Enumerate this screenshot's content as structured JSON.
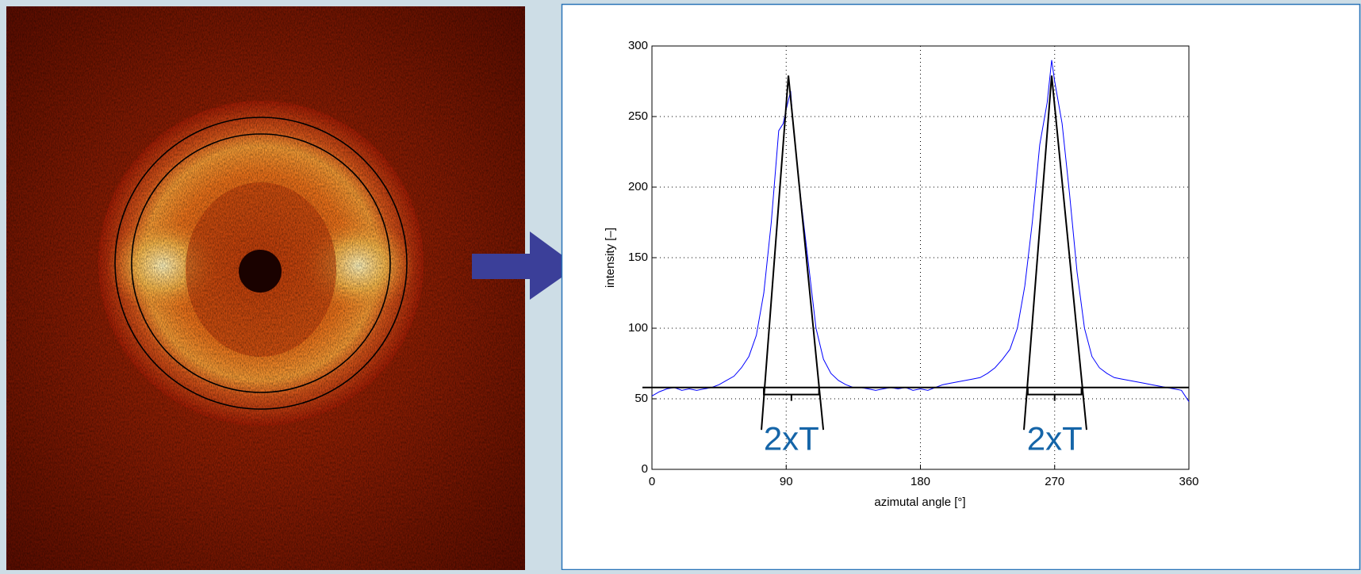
{
  "chart_data": {
    "type": "line",
    "xlabel": "azimutal angle [°]",
    "ylabel": "intensity [–]",
    "x": [
      0,
      5,
      10,
      15,
      20,
      25,
      30,
      35,
      40,
      45,
      50,
      55,
      60,
      65,
      70,
      75,
      80,
      85,
      88,
      90,
      93,
      95,
      100,
      105,
      110,
      115,
      120,
      125,
      130,
      135,
      140,
      145,
      150,
      155,
      160,
      165,
      170,
      175,
      180,
      185,
      190,
      195,
      200,
      205,
      210,
      215,
      220,
      225,
      230,
      235,
      240,
      245,
      250,
      255,
      260,
      265,
      268,
      270,
      275,
      280,
      285,
      290,
      295,
      300,
      305,
      310,
      315,
      320,
      325,
      330,
      335,
      340,
      345,
      350,
      355,
      360
    ],
    "values": [
      52,
      55,
      57,
      58,
      56,
      57,
      56,
      57,
      58,
      60,
      63,
      66,
      72,
      80,
      95,
      125,
      175,
      240,
      245,
      255,
      268,
      240,
      190,
      145,
      100,
      78,
      68,
      63,
      60,
      58,
      58,
      57,
      56,
      57,
      58,
      57,
      58,
      56,
      57,
      56,
      58,
      60,
      61,
      62,
      63,
      64,
      65,
      68,
      72,
      78,
      85,
      100,
      130,
      175,
      230,
      260,
      290,
      275,
      245,
      195,
      140,
      100,
      80,
      72,
      68,
      65,
      64,
      63,
      62,
      61,
      60,
      59,
      58,
      57,
      56,
      48
    ],
    "color": "#0000ff",
    "baseline": 58,
    "fit_lines": [
      {
        "x": [
          73.4,
          91.5,
          114.9
        ],
        "y": [
          28,
          279,
          28
        ]
      },
      {
        "x": [
          249.4,
          268,
          291.4
        ],
        "y": [
          28,
          279,
          28
        ]
      }
    ],
    "brackets": [
      {
        "x": [
          75,
          112
        ],
        "y": 53,
        "label": "2xT"
      },
      {
        "x": [
          252,
          288
        ],
        "y": 53,
        "label": "2xT"
      }
    ],
    "xlim": [
      0,
      360
    ],
    "ylim": [
      0,
      300
    ],
    "xticks": [
      0,
      90,
      180,
      270,
      360
    ],
    "yticks": [
      0,
      50,
      100,
      150,
      200,
      250,
      300
    ],
    "grid": true
  }
}
